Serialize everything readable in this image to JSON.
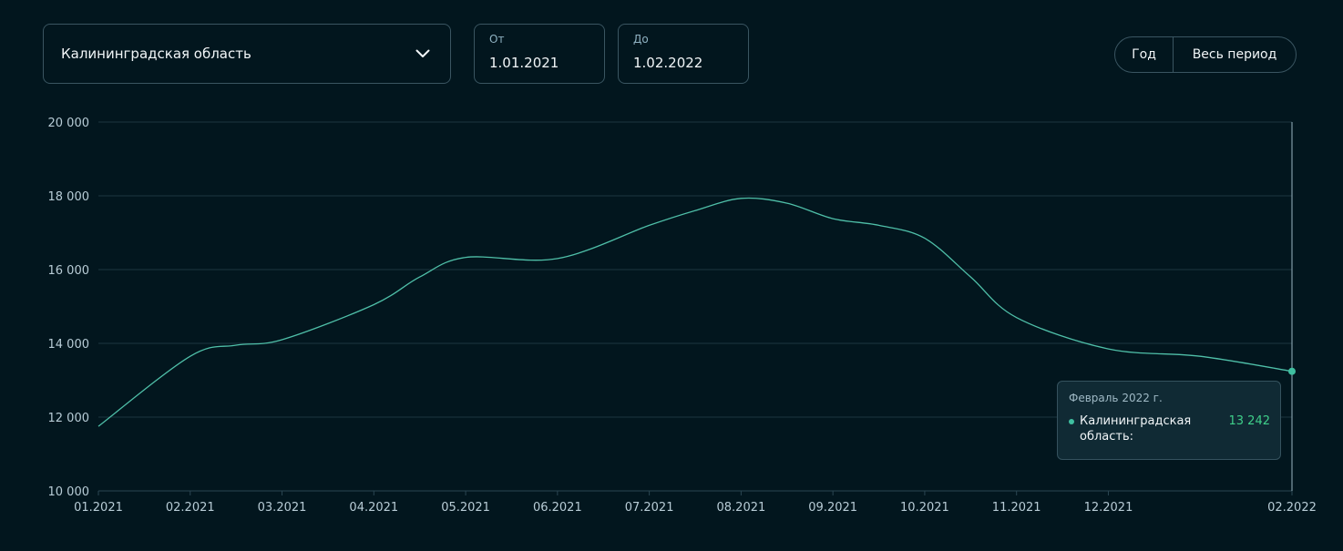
{
  "region_select": {
    "value": "Калининградская область",
    "icon": "chevron-down-icon"
  },
  "date_from": {
    "caption": "От",
    "value": "1.01.2021"
  },
  "date_to": {
    "caption": "До",
    "value": "1.02.2022"
  },
  "period_buttons": {
    "year": "Год",
    "all": "Весь период"
  },
  "tooltip": {
    "title": "Февраль 2022 г.",
    "series": "Калининградская область:",
    "value": "13 242"
  },
  "colors": {
    "background": "#02161e",
    "line": "#4fbfa8",
    "grid": "#1c3540",
    "accent_value": "#3fcf8a"
  },
  "chart_data": {
    "type": "line",
    "ylim": [
      10000,
      20000
    ],
    "yticks": [
      10000,
      12000,
      14000,
      16000,
      18000,
      20000
    ],
    "ytick_labels": [
      "10 000",
      "12 000",
      "14 000",
      "16 000",
      "18 000",
      "20 000"
    ],
    "xlabels": [
      "01.2021",
      "02.2021",
      "03.2021",
      "04.2021",
      "05.2021",
      "06.2021",
      "07.2021",
      "08.2021",
      "09.2021",
      "10.2021",
      "11.2021",
      "12.2021",
      "02.2022"
    ],
    "xlabel_months": [
      0,
      1,
      2,
      3,
      4,
      5,
      6,
      7,
      8,
      9,
      10,
      11,
      13
    ],
    "grid": true,
    "series": [
      {
        "name": "Калининградская область",
        "months": [
          0,
          1,
          1.5,
          2,
          3,
          3.5,
          4,
          5,
          6,
          6.5,
          7,
          7.5,
          8,
          8.5,
          9,
          9.5,
          10,
          11,
          12,
          13
        ],
        "values": [
          11750,
          13650,
          13950,
          14100,
          15050,
          15800,
          16330,
          16300,
          17200,
          17600,
          17930,
          17800,
          17380,
          17200,
          16850,
          15800,
          14700,
          13850,
          13650,
          13242
        ]
      }
    ],
    "highlight": {
      "month": 13,
      "value": 13242
    }
  }
}
